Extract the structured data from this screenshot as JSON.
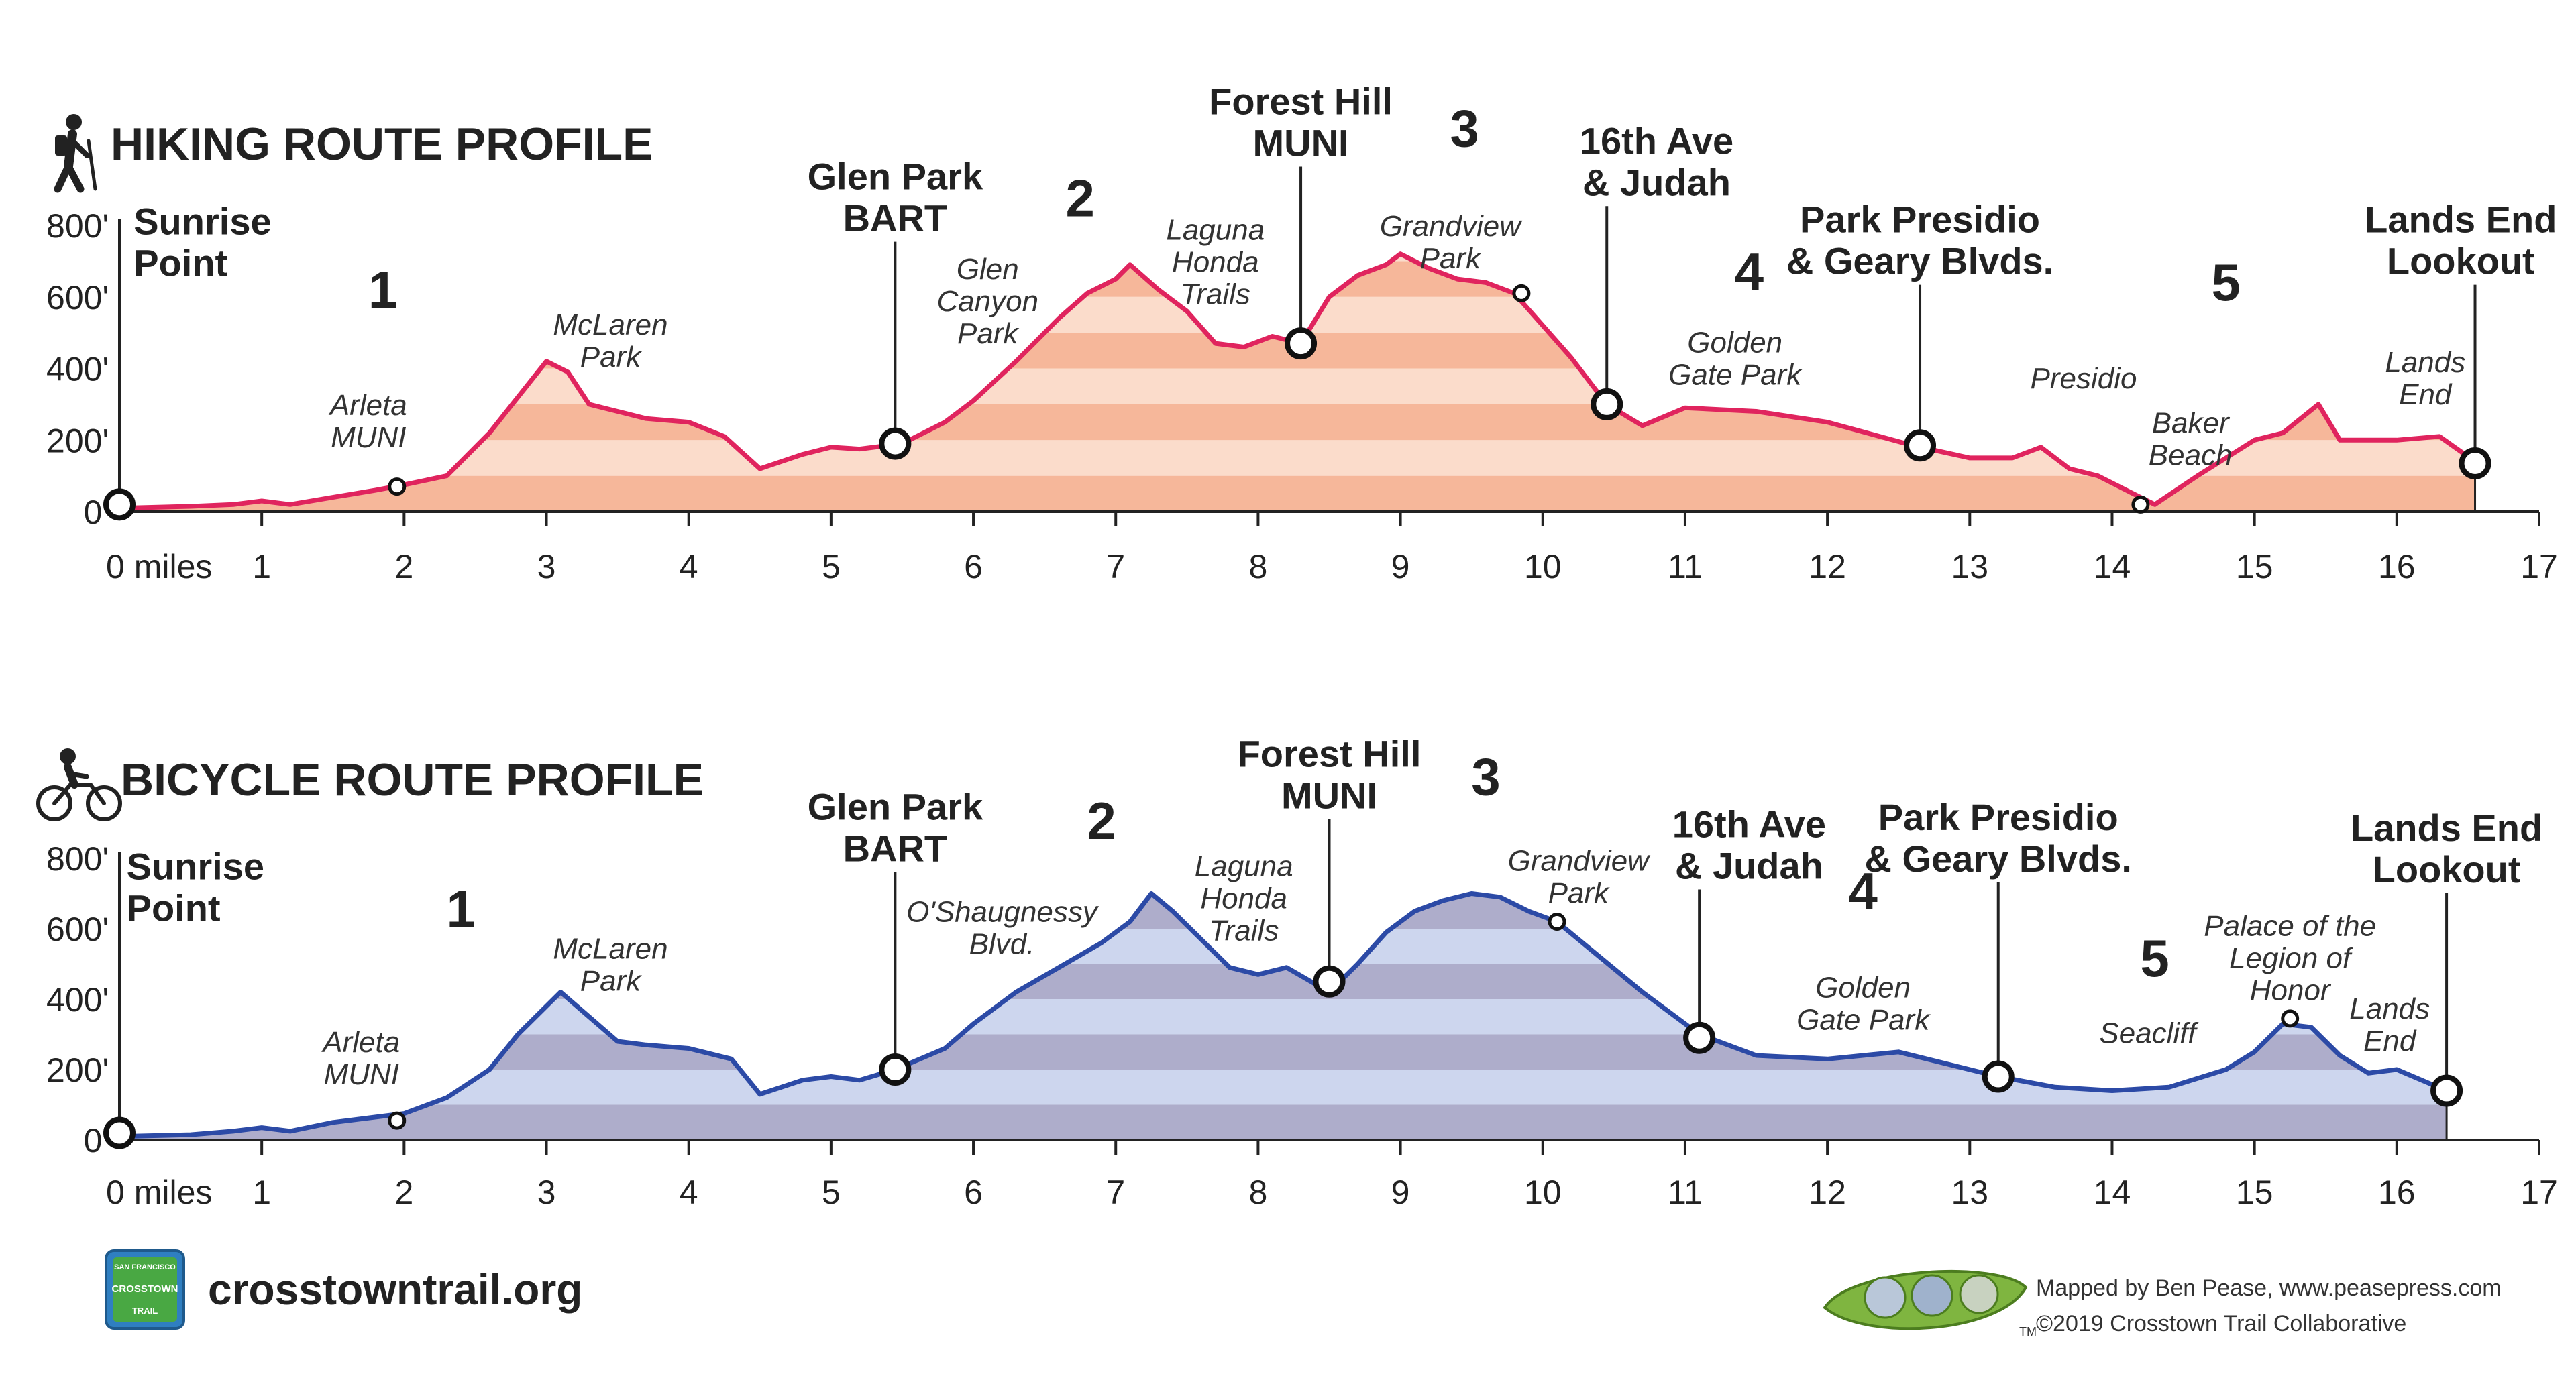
{
  "footer": {
    "website": "crosstowntrail.org",
    "credit_line1": "Mapped by Ben Pease, www.peasepress.com",
    "credit_line2": "©2019 Crosstown Trail Collaborative",
    "logo_lines": [
      "SAN FRANCISCO",
      "CROSSTOWN",
      "TRAIL"
    ],
    "peapod_mark": "TM"
  },
  "chart_data": [
    {
      "type": "area",
      "title": "HIKING ROUTE PROFILE",
      "icon": "hiker-icon",
      "colors": {
        "line": "#e0245e",
        "fill_dark": "#f6b79a",
        "fill_light": "#fbdccb"
      },
      "xlim": [
        0,
        17
      ],
      "ylim": [
        0,
        800
      ],
      "x_ticks": [
        0,
        1,
        2,
        3,
        4,
        5,
        6,
        7,
        8,
        9,
        10,
        11,
        12,
        13,
        14,
        15,
        16,
        17
      ],
      "x_tick_labels": [
        "0 miles",
        "1",
        "2",
        "3",
        "4",
        "5",
        "6",
        "7",
        "8",
        "9",
        "10",
        "11",
        "12",
        "13",
        "14",
        "15",
        "16",
        "17"
      ],
      "y_ticks": [
        0,
        200,
        400,
        600,
        800
      ],
      "y_tick_labels": [
        "0'",
        "200'",
        "400'",
        "600'",
        "800'"
      ],
      "grid": false,
      "series": [
        {
          "x": [
            0,
            0.5,
            0.8,
            1.0,
            1.2,
            1.5,
            1.8,
            2.0,
            2.3,
            2.6,
            2.8,
            3.0,
            3.15,
            3.3,
            3.5,
            3.7,
            4.0,
            4.25,
            4.5,
            4.8,
            5.0,
            5.2,
            5.5,
            5.8,
            6.0,
            6.3,
            6.6,
            6.8,
            7.0,
            7.1,
            7.3,
            7.5,
            7.7,
            7.9,
            8.1,
            8.3,
            8.5,
            8.7,
            8.9,
            9.0,
            9.2,
            9.4,
            9.6,
            9.8,
            10.0,
            10.2,
            10.45,
            10.7,
            11.0,
            11.5,
            12.0,
            12.6,
            13.0,
            13.3,
            13.5,
            13.7,
            13.9,
            14.1,
            14.3,
            14.6,
            14.8,
            15.0,
            15.2,
            15.45,
            15.6,
            16.0,
            16.3,
            16.55
          ],
          "y": [
            10,
            15,
            20,
            30,
            20,
            40,
            60,
            75,
            100,
            220,
            320,
            420,
            390,
            300,
            280,
            260,
            250,
            210,
            120,
            160,
            180,
            175,
            190,
            250,
            310,
            420,
            540,
            610,
            650,
            690,
            620,
            560,
            470,
            460,
            490,
            470,
            600,
            660,
            690,
            720,
            680,
            650,
            640,
            610,
            520,
            430,
            300,
            240,
            290,
            280,
            250,
            185,
            150,
            150,
            180,
            120,
            100,
            60,
            20,
            100,
            150,
            200,
            220,
            300,
            200,
            200,
            210,
            140
          ]
        }
      ],
      "axis_end": 16.55,
      "annotations": [
        {
          "lines": [
            "Sunrise",
            "Point"
          ],
          "style": "big",
          "x": 0,
          "y": 20,
          "marker": "large",
          "label_x": 0.1,
          "label_y": 775
        },
        {
          "lines": [
            "Glen Park",
            "BART"
          ],
          "style": "big",
          "x": 5.45,
          "y": 190,
          "marker": "large",
          "leader": true,
          "label_x": 5.45,
          "label_y": 900
        },
        {
          "lines": [
            "Forest Hill",
            "MUNI"
          ],
          "style": "big",
          "x": 8.3,
          "y": 470,
          "marker": "large",
          "leader": true,
          "label_x": 8.3,
          "label_y": 1110
        },
        {
          "lines": [
            "16th Ave",
            "& Judah"
          ],
          "style": "big",
          "x": 10.45,
          "y": 300,
          "marker": "large",
          "leader": true,
          "label_x": 10.8,
          "label_y": 1000
        },
        {
          "lines": [
            "Park Presidio",
            "& Geary Blvds."
          ],
          "style": "big",
          "x": 12.65,
          "y": 185,
          "marker": "large",
          "leader": true,
          "label_x": 12.65,
          "label_y": 780
        },
        {
          "lines": [
            "Lands End",
            "Lookout"
          ],
          "style": "big",
          "x": 16.55,
          "y": 135,
          "marker": "large",
          "leader": true,
          "label_x": 16.45,
          "label_y": 780
        },
        {
          "lines": [
            "Arleta",
            "MUNI"
          ],
          "style": "italic",
          "x": 1.95,
          "y": 70,
          "marker": "small",
          "label_x": 1.75,
          "label_y": 270
        },
        {
          "lines": [
            "Grandview",
            "Park"
          ],
          "style": "italic",
          "x": 9.85,
          "y": 610,
          "marker": "small",
          "label_x": 9.35,
          "label_y": 770
        },
        {
          "lines": [
            "Baker",
            "Beach"
          ],
          "style": "italic",
          "x": 14.2,
          "y": 20,
          "marker": "small",
          "label_x": 14.55,
          "label_y": 220
        },
        {
          "lines": [
            "McLaren",
            "Park"
          ],
          "style": "italic",
          "label_x": 3.45,
          "label_y": 495
        },
        {
          "lines": [
            "Glen",
            "Canyon",
            "Park"
          ],
          "style": "italic",
          "label_x": 6.1,
          "label_y": 650
        },
        {
          "lines": [
            "Laguna",
            "Honda",
            "Trails"
          ],
          "style": "italic",
          "label_x": 7.7,
          "label_y": 760
        },
        {
          "lines": [
            "Golden",
            "Gate Park"
          ],
          "style": "italic",
          "label_x": 11.35,
          "label_y": 445
        },
        {
          "lines": [
            "Presidio"
          ],
          "style": "italic",
          "label_x": 13.8,
          "label_y": 345
        },
        {
          "lines": [
            "Lands",
            "End"
          ],
          "style": "italic",
          "label_x": 16.2,
          "label_y": 390
        },
        {
          "lines": [
            "1"
          ],
          "style": "segment",
          "label_x": 1.85,
          "label_y": 570
        },
        {
          "lines": [
            "2"
          ],
          "style": "segment",
          "label_x": 6.75,
          "label_y": 825
        },
        {
          "lines": [
            "3"
          ],
          "style": "segment",
          "label_x": 9.45,
          "label_y": 1020
        },
        {
          "lines": [
            "4"
          ],
          "style": "segment",
          "label_x": 11.45,
          "label_y": 620
        },
        {
          "lines": [
            "5"
          ],
          "style": "segment",
          "label_x": 14.8,
          "label_y": 590
        }
      ]
    },
    {
      "type": "area",
      "title": "BICYCLE ROUTE PROFILE",
      "icon": "cyclist-icon",
      "colors": {
        "line": "#2c4aa6",
        "fill_dark": "#aeadcb",
        "fill_light": "#cdd6ee"
      },
      "xlim": [
        0,
        17
      ],
      "ylim": [
        0,
        800
      ],
      "x_ticks": [
        0,
        1,
        2,
        3,
        4,
        5,
        6,
        7,
        8,
        9,
        10,
        11,
        12,
        13,
        14,
        15,
        16,
        17
      ],
      "x_tick_labels": [
        "0 miles",
        "1",
        "2",
        "3",
        "4",
        "5",
        "6",
        "7",
        "8",
        "9",
        "10",
        "11",
        "12",
        "13",
        "14",
        "15",
        "16",
        "17"
      ],
      "y_ticks": [
        0,
        200,
        400,
        600,
        800
      ],
      "y_tick_labels": [
        "0'",
        "200'",
        "400'",
        "600'",
        "800'"
      ],
      "grid": false,
      "series": [
        {
          "x": [
            0,
            0.5,
            0.8,
            1.0,
            1.2,
            1.5,
            1.8,
            2.0,
            2.3,
            2.6,
            2.8,
            3.0,
            3.1,
            3.3,
            3.5,
            3.7,
            4.0,
            4.3,
            4.5,
            4.8,
            5.0,
            5.2,
            5.45,
            5.8,
            6.0,
            6.3,
            6.6,
            6.9,
            7.1,
            7.25,
            7.4,
            7.6,
            7.8,
            8.0,
            8.2,
            8.5,
            8.7,
            8.9,
            9.1,
            9.3,
            9.5,
            9.7,
            9.9,
            10.1,
            10.4,
            10.7,
            11.1,
            11.5,
            12.0,
            12.5,
            13.2,
            13.6,
            14.0,
            14.4,
            14.8,
            15.0,
            15.2,
            15.4,
            15.6,
            15.8,
            16.0,
            16.35
          ],
          "y": [
            10,
            15,
            25,
            35,
            25,
            50,
            65,
            75,
            120,
            200,
            300,
            380,
            420,
            350,
            280,
            270,
            260,
            230,
            130,
            170,
            180,
            170,
            200,
            260,
            330,
            420,
            490,
            560,
            620,
            700,
            650,
            570,
            490,
            470,
            490,
            420,
            500,
            590,
            650,
            680,
            700,
            690,
            650,
            620,
            520,
            420,
            300,
            240,
            230,
            250,
            180,
            150,
            140,
            150,
            200,
            250,
            330,
            320,
            240,
            190,
            200,
            140
          ]
        }
      ],
      "axis_end": 16.35,
      "annotations": [
        {
          "lines": [
            "Sunrise",
            "Point"
          ],
          "style": "big",
          "x": 0,
          "y": 20,
          "marker": "large",
          "label_x": 0.05,
          "label_y": 740
        },
        {
          "lines": [
            "Glen Park",
            "BART"
          ],
          "style": "big",
          "x": 5.45,
          "y": 200,
          "marker": "large",
          "leader": true,
          "label_x": 5.45,
          "label_y": 910
        },
        {
          "lines": [
            "Forest Hill",
            "MUNI"
          ],
          "style": "big",
          "x": 8.5,
          "y": 450,
          "marker": "large",
          "leader": true,
          "label_x": 8.5,
          "label_y": 1060
        },
        {
          "lines": [
            "16th Ave",
            "& Judah"
          ],
          "style": "big",
          "x": 11.1,
          "y": 290,
          "marker": "large",
          "leader": true,
          "label_x": 11.45,
          "label_y": 860
        },
        {
          "lines": [
            "Park Presidio",
            "& Geary Blvds."
          ],
          "style": "big",
          "x": 13.2,
          "y": 180,
          "marker": "large",
          "leader": true,
          "label_x": 13.2,
          "label_y": 880
        },
        {
          "lines": [
            "Lands End",
            "Lookout"
          ],
          "style": "big",
          "x": 16.35,
          "y": 140,
          "marker": "large",
          "leader": true,
          "label_x": 16.35,
          "label_y": 850
        },
        {
          "lines": [
            "Arleta",
            "MUNI"
          ],
          "style": "italic",
          "x": 1.95,
          "y": 55,
          "marker": "small",
          "label_x": 1.7,
          "label_y": 250
        },
        {
          "lines": [
            "Grandview",
            "Park"
          ],
          "style": "italic",
          "x": 10.1,
          "y": 620,
          "marker": "small",
          "label_x": 10.25,
          "label_y": 765
        },
        {
          "lines": [
            "Palace of the",
            "Legion of",
            "Honor"
          ],
          "style": "italic",
          "x": 15.25,
          "y": 345,
          "marker": "small",
          "label_x": 15.25,
          "label_y": 580
        },
        {
          "lines": [
            "McLaren",
            "Park"
          ],
          "style": "italic",
          "label_x": 3.45,
          "label_y": 515
        },
        {
          "lines": [
            "O'Shaugnessy",
            "Blvd."
          ],
          "style": "italic",
          "label_x": 6.2,
          "label_y": 620
        },
        {
          "lines": [
            "Laguna",
            "Honda",
            "Trails"
          ],
          "style": "italic",
          "label_x": 7.9,
          "label_y": 750
        },
        {
          "lines": [
            "Golden",
            "Gate Park"
          ],
          "style": "italic",
          "label_x": 12.25,
          "label_y": 405
        },
        {
          "lines": [
            "Seacliff"
          ],
          "style": "italic",
          "label_x": 14.25,
          "label_y": 275
        },
        {
          "lines": [
            "Lands",
            "End"
          ],
          "style": "italic",
          "label_x": 15.95,
          "label_y": 345
        },
        {
          "lines": [
            "1"
          ],
          "style": "segment",
          "label_x": 2.4,
          "label_y": 605
        },
        {
          "lines": [
            "2"
          ],
          "style": "segment",
          "label_x": 6.9,
          "label_y": 855
        },
        {
          "lines": [
            "3"
          ],
          "style": "segment",
          "label_x": 9.6,
          "label_y": 980
        },
        {
          "lines": [
            "4"
          ],
          "style": "segment",
          "label_x": 12.25,
          "label_y": 655
        },
        {
          "lines": [
            "5"
          ],
          "style": "segment",
          "label_x": 14.3,
          "label_y": 465
        }
      ]
    }
  ]
}
